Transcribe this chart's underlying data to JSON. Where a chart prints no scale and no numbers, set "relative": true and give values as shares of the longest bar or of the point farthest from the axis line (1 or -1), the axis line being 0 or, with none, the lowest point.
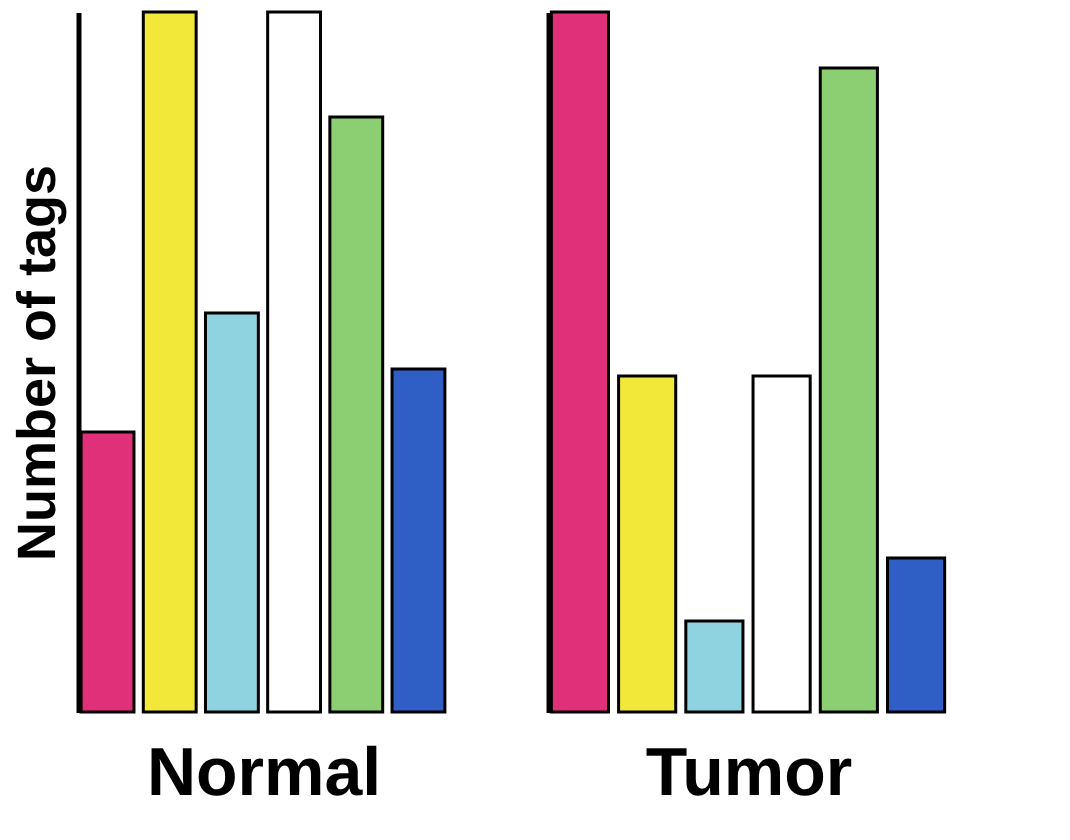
{
  "chart_data": [
    {
      "type": "bar",
      "relative": true,
      "ylabel": "Number of tags",
      "xlabel": "Normal",
      "categories": [
        null,
        null,
        null,
        null,
        null,
        null
      ],
      "series": [
        {
          "values": [
            0.4,
            1,
            0.57,
            1,
            0.85,
            0.49
          ],
          "colors": [
            "#e0307a",
            "#f2e83a",
            "#8fd3e0",
            "#ffffff",
            "#8ccf72",
            "#2f5fc4"
          ]
        }
      ]
    },
    {
      "type": "bar",
      "relative": true,
      "xlabel": "Tumor",
      "categories": [
        null,
        null,
        null,
        null,
        null,
        null
      ],
      "series": [
        {
          "values": [
            1,
            0.48,
            0.13,
            0.48,
            0.92,
            0.22
          ],
          "colors": [
            "#e0307a",
            "#f2e83a",
            "#8fd3e0",
            "#ffffff",
            "#8ccf72",
            "#2f5fc4"
          ]
        }
      ]
    }
  ]
}
